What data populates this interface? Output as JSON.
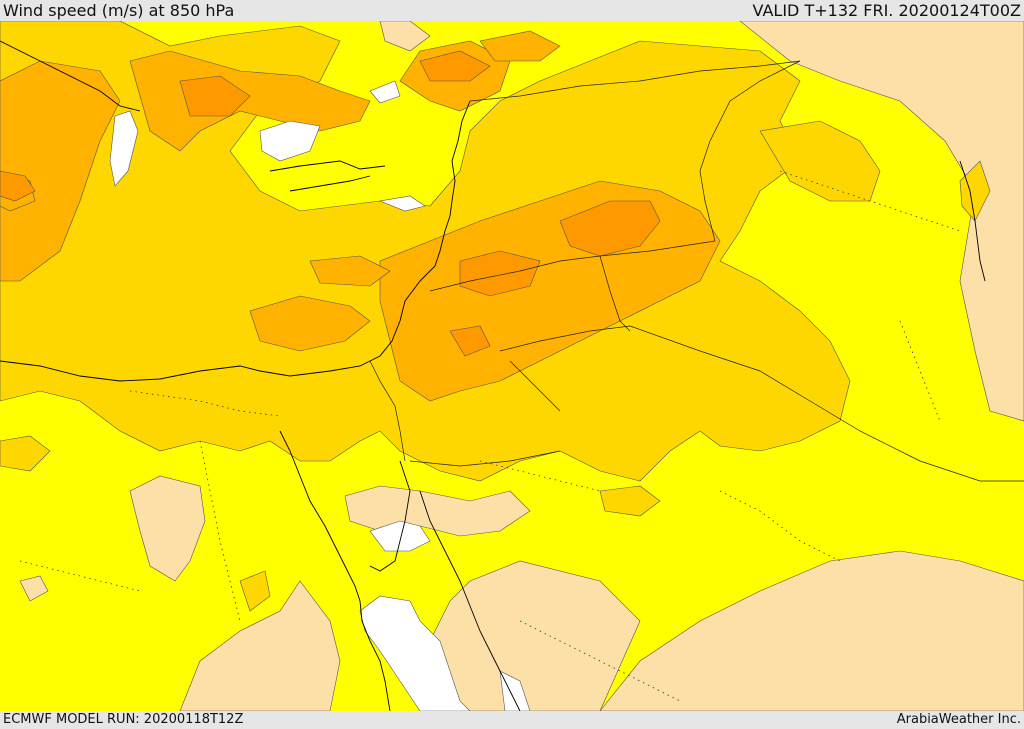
{
  "header": {
    "title": "Wind speed (m/s) at 850 hPa",
    "valid": "VALID T+132 FRI. 20200124T00Z"
  },
  "footer": {
    "model_run": "ECMWF MODEL RUN: 20200118T12Z",
    "credit": "ArabiaWeather Inc."
  },
  "map": {
    "field": "Wind speed at 850 hPa",
    "fill_colors": [
      "#ffffff",
      "#fde0a8",
      "#ffff00",
      "#ffd700",
      "#ffb300",
      "#ff9900"
    ]
  }
}
